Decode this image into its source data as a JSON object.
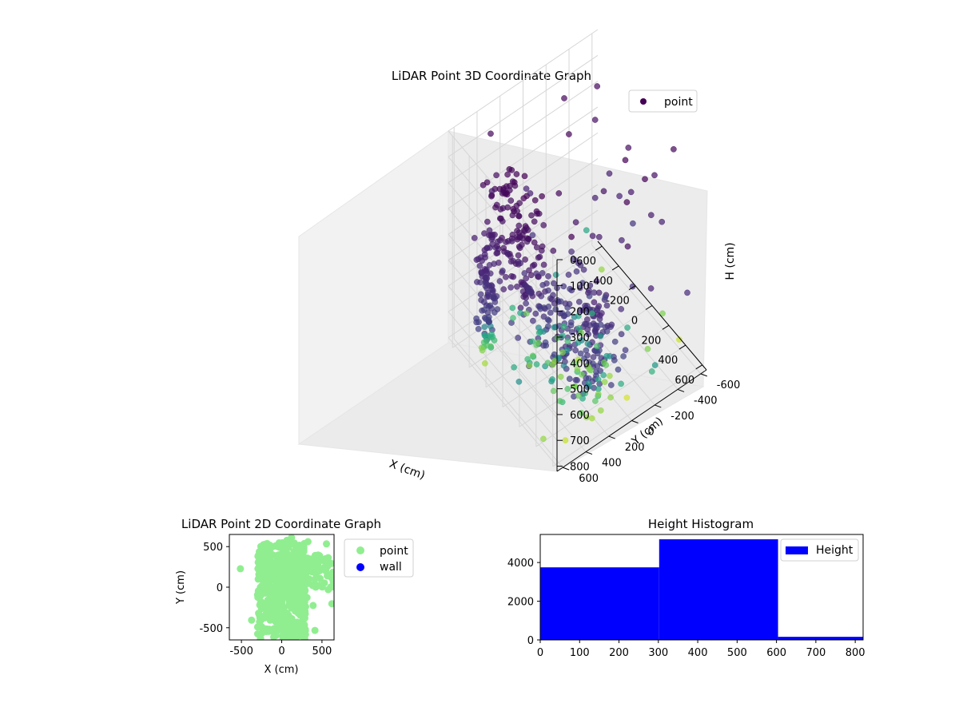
{
  "chart_data": [
    {
      "type": "scatter",
      "projection": "3d",
      "title": "LiDAR Point 3D Coordinate Graph",
      "xlabel": "X (cm)",
      "ylabel": "Y (cm)",
      "zlabel": "H (cm)",
      "x_ticks": [
        "-600",
        "-400",
        "-200",
        "0",
        "200",
        "400",
        "600"
      ],
      "y_ticks": [
        "-600",
        "-400",
        "-200",
        "0",
        "200",
        "400",
        "600"
      ],
      "z_ticks": [
        "0",
        "100",
        "200",
        "300",
        "400",
        "500",
        "600",
        "700",
        "800"
      ],
      "xlim": [
        -650,
        650
      ],
      "ylim": [
        -650,
        650
      ],
      "zlim": [
        0,
        820
      ],
      "z_axis_inverted": true,
      "grid": true,
      "colormap": "viridis",
      "legend": {
        "entries": [
          "point"
        ],
        "position": "upper right"
      },
      "series": [
        {
          "name": "point",
          "color_by": "height",
          "point_groups": [
            {
              "x_range": [
                -430,
                -300
              ],
              "y_range": [
                450,
                600
              ],
              "h_range": [
                300,
                800
              ],
              "approx_count": 420
            },
            {
              "x_range": [
                -250,
                200
              ],
              "y_range": [
                400,
                620
              ],
              "h_range": [
                0,
                400
              ],
              "approx_count": 520
            },
            {
              "x_range": [
                -200,
                500
              ],
              "y_range": [
                -100,
                400
              ],
              "h_range": [
                500,
                800
              ],
              "approx_count": 900
            },
            {
              "x_range": [
                400,
                520
              ],
              "y_range": [
                100,
                250
              ],
              "h_range": [
                300,
                800
              ],
              "approx_count": 160
            },
            {
              "x_range": [
                -650,
                650
              ],
              "y_range": [
                -650,
                650
              ],
              "h_range": [
                0,
                820
              ],
              "approx_count": 320
            }
          ]
        }
      ]
    },
    {
      "type": "scatter",
      "title": "LiDAR Point 2D Coordinate Graph",
      "xlabel": "X (cm)",
      "ylabel": "Y (cm)",
      "x_ticks": [
        "-500",
        "0",
        "500"
      ],
      "y_ticks": [
        "-500",
        "0",
        "500"
      ],
      "xlim": [
        -650,
        650
      ],
      "ylim": [
        -650,
        650
      ],
      "grid": false,
      "legend": {
        "entries": [
          "point",
          "wall"
        ],
        "position": "outside right"
      },
      "series": [
        {
          "name": "point",
          "color": "#90ee90",
          "point_groups": [
            {
              "x_range": [
                -300,
                300
              ],
              "y_range": [
                -650,
                550
              ],
              "approx_count": 1400
            },
            {
              "x_range": [
                100,
                650
              ],
              "y_range": [
                0,
                400
              ],
              "approx_count": 300
            }
          ]
        },
        {
          "name": "wall",
          "color": "#0000ff",
          "points": []
        }
      ]
    },
    {
      "type": "bar",
      "subtype": "histogram",
      "title": "Height Histogram",
      "xlabel": "",
      "ylabel": "",
      "x_ticks": [
        "0",
        "100",
        "200",
        "300",
        "400",
        "500",
        "600",
        "700",
        "800"
      ],
      "y_ticks": [
        "0",
        "2000",
        "4000"
      ],
      "xlim": [
        0,
        820
      ],
      "ylim": [
        0,
        5450
      ],
      "grid": false,
      "color": "#0000ff",
      "legend": {
        "entries": [
          "Height"
        ],
        "position": "upper right"
      },
      "bins": [
        {
          "start": 0,
          "end": 302,
          "count": 3750
        },
        {
          "start": 302,
          "end": 604,
          "count": 5200
        },
        {
          "start": 604,
          "end": 820,
          "count": 160
        }
      ]
    }
  ]
}
